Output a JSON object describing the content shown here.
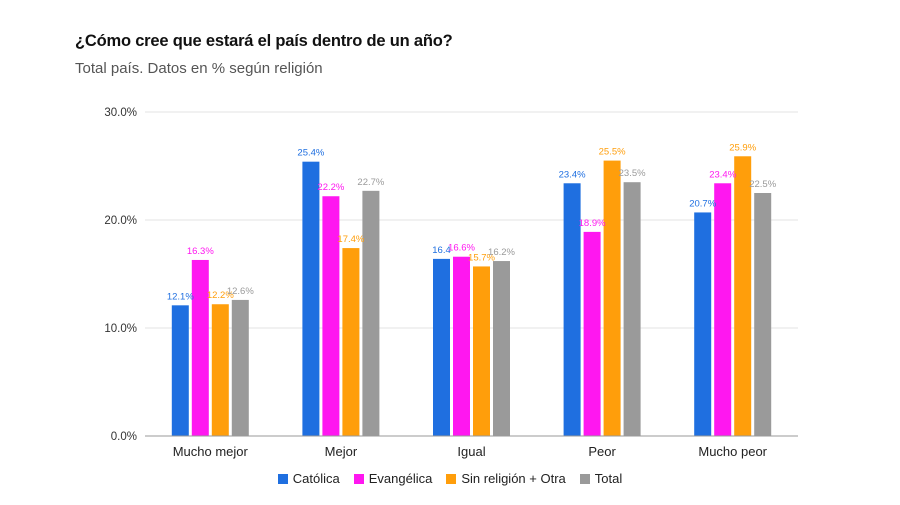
{
  "title": "¿Cómo cree que estará el país dentro de un año?",
  "subtitle": "Total país. Datos en % según religión",
  "chart_data": {
    "type": "bar",
    "categories": [
      "Mucho mejor",
      "Mejor",
      "Igual",
      "Peor",
      "Mucho peor"
    ],
    "series": [
      {
        "name": "Católica",
        "color": "#1f6fe0",
        "values": [
          12.1,
          25.4,
          16.4,
          23.4,
          20.7
        ],
        "labels": [
          "12.1%",
          "25.4%",
          "16.4",
          "23.4%",
          "20.7%"
        ]
      },
      {
        "name": "Evangélica",
        "color": "#ff17f0",
        "values": [
          16.3,
          22.2,
          16.6,
          18.9,
          23.4
        ],
        "labels": [
          "16.3%",
          "22.2%",
          "16.6%",
          "18.9%",
          "23.4%"
        ]
      },
      {
        "name": "Sin religión + Otra",
        "color": "#ff9e0b",
        "values": [
          12.2,
          17.4,
          15.7,
          25.5,
          25.9
        ],
        "labels": [
          "12.2%",
          "17.4%",
          "15.7%",
          "25.5%",
          "25.9%"
        ]
      },
      {
        "name": "Total",
        "color": "#9a9a9a",
        "values": [
          12.6,
          22.7,
          16.2,
          23.5,
          22.5
        ],
        "labels": [
          "12.6%",
          "22.7%",
          "16.2%",
          "23.5%",
          "22.5%"
        ]
      }
    ],
    "ylim": [
      0,
      30
    ],
    "yticks": [
      "0.0%",
      "10.0%",
      "20.0%",
      "30.0%"
    ],
    "ytick_values": [
      0,
      10,
      20,
      30
    ],
    "grid": true,
    "legend_position": "bottom"
  }
}
